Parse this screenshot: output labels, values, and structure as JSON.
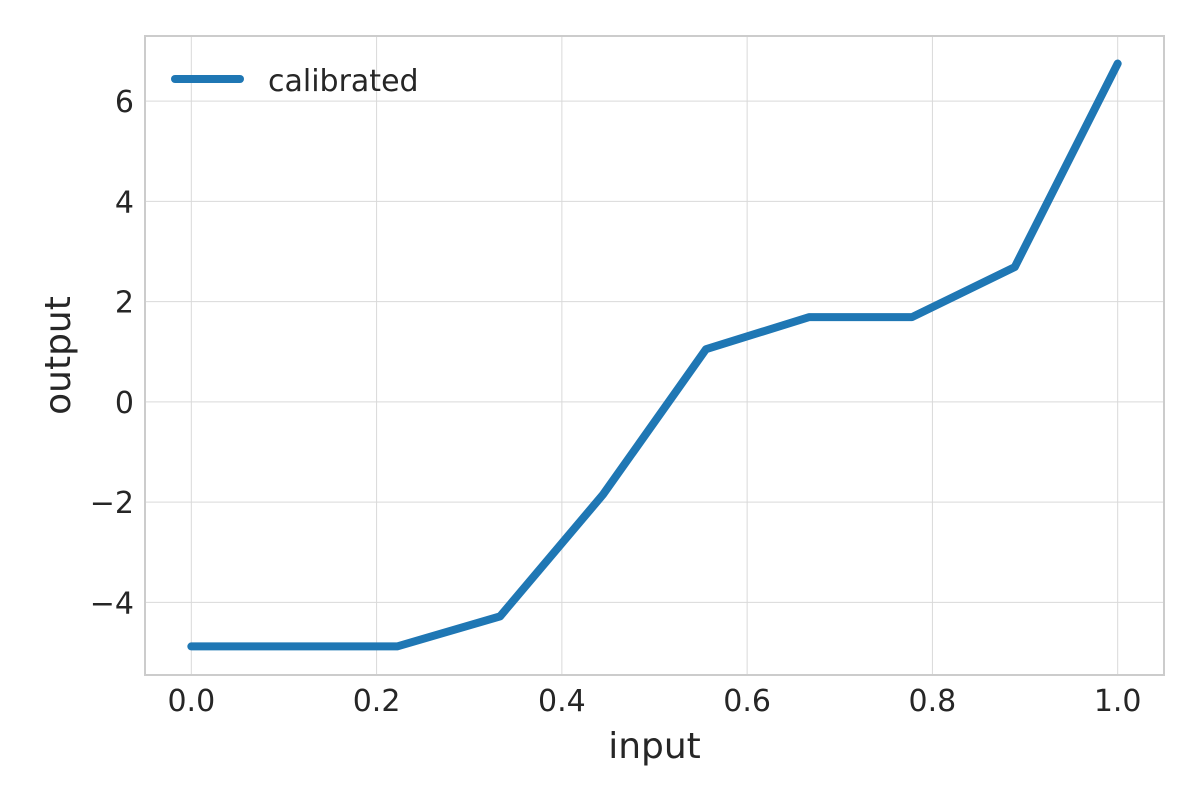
{
  "chart_data": {
    "type": "line",
    "title": "",
    "xlabel": "input",
    "ylabel": "output",
    "xlim": [
      -0.05,
      1.05
    ],
    "ylim": [
      -5.45,
      7.3
    ],
    "xticks": [
      0.0,
      0.2,
      0.4,
      0.6,
      0.8,
      1.0
    ],
    "xtick_labels": [
      "0.0",
      "0.2",
      "0.4",
      "0.6",
      "0.8",
      "1.0"
    ],
    "yticks": [
      -4,
      -2,
      0,
      2,
      4,
      6
    ],
    "ytick_labels": [
      "−4",
      "−2",
      "0",
      "2",
      "4",
      "6"
    ],
    "grid": true,
    "legend": "upper-left",
    "series": [
      {
        "name": "calibrated",
        "color": "#1f77b4",
        "x": [
          0.0,
          0.1111,
          0.2222,
          0.3333,
          0.4444,
          0.5556,
          0.6667,
          0.7778,
          0.8889,
          1.0
        ],
        "y": [
          -4.88,
          -4.88,
          -4.88,
          -4.28,
          -1.85,
          1.05,
          1.69,
          1.69,
          2.69,
          6.75
        ]
      }
    ]
  }
}
